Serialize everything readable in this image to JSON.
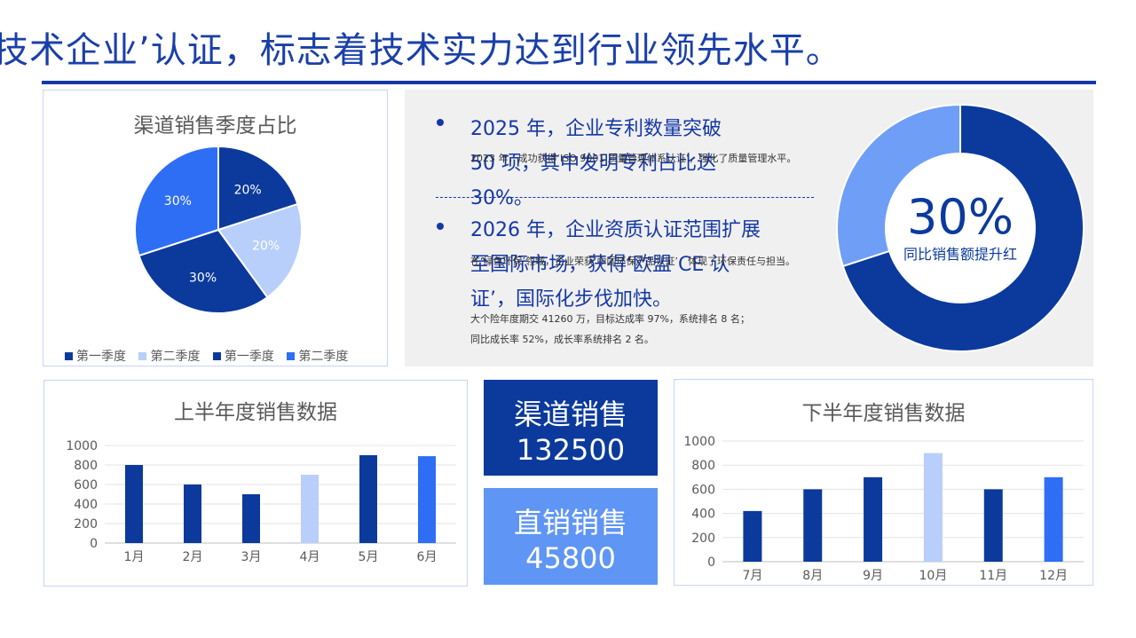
{
  "header": {
    "title": "技术企业’认证，标志着技术实力达到行业领先水平。"
  },
  "colors": {
    "primary": "#1438a6",
    "dark_blue": "#0b3a9c",
    "medium_blue": "#2e6ef5",
    "light_blue": "#b8cefb",
    "donut_light": "#6f9ef6",
    "panel_bg": "#f0f0f0"
  },
  "pie_panel": {
    "title": "渠道销售季度占比",
    "legend": [
      "第一季度",
      "第二季度",
      "第一季度",
      "第二季度"
    ]
  },
  "info": {
    "bullet1": "2025 年，企业专利数量突破 50 项，其中发明专利占比达 30%。",
    "small1": "2023 年，成功获得‘ISO 9001 质量管理体系认证’，强化了质量管理水平。",
    "bullet2": "2026 年，企业资质认证范围扩展至国际市场，获得‘欧盟 CE 认证’，国际化步伐加快。",
    "small2": "在‘绿色环保’领域，企业荣获‘中国环保产品认证’，体现了环保责任与担当。",
    "small3": "大个险年度期交 41260 万，目标达成率 97%，系统排名 8 名；",
    "small4": "同比成长率 52%，成长率系统排名 2 名。",
    "donut_value": "30%",
    "donut_label": "同比销售额提升红"
  },
  "stats": {
    "channel_label": "渠道销售",
    "channel_value": "132500",
    "direct_label": "直销销售",
    "direct_value": "45800"
  },
  "chart_data": [
    {
      "type": "pie",
      "title": "渠道销售季度占比",
      "categories": [
        "第一季度",
        "第二季度",
        "第一季度",
        "第二季度"
      ],
      "values": [
        20,
        20,
        30,
        30
      ],
      "labels": [
        "20%",
        "20%",
        "30%",
        "30%"
      ],
      "colors": [
        "#0b3a9c",
        "#b8cefb",
        "#0b3a9c",
        "#2e6ef5"
      ],
      "legend": "bottom"
    },
    {
      "type": "pie",
      "subtype": "donut",
      "values": [
        70,
        30
      ],
      "center_value": "30%",
      "center_label": "同比销售额提升红",
      "colors": [
        "#0b3a9c",
        "#6f9ef6"
      ]
    },
    {
      "type": "bar",
      "title": "上半年度销售数据",
      "categories": [
        "1月",
        "2月",
        "3月",
        "4月",
        "5月",
        "6月"
      ],
      "values": [
        800,
        600,
        500,
        700,
        900,
        890
      ],
      "colors": [
        "#0b3a9c",
        "#0b3a9c",
        "#0b3a9c",
        "#b8cefb",
        "#0b3a9c",
        "#2e6ef5"
      ],
      "ylim": [
        0,
        1000
      ],
      "yticks": [
        0,
        200,
        400,
        600,
        800,
        1000
      ],
      "grid": true
    },
    {
      "type": "bar",
      "title": "下半年度销售数据",
      "categories": [
        "7月",
        "8月",
        "9月",
        "10月",
        "11月",
        "12月"
      ],
      "values": [
        420,
        600,
        700,
        900,
        600,
        700
      ],
      "colors": [
        "#0b3a9c",
        "#0b3a9c",
        "#0b3a9c",
        "#b8cefb",
        "#0b3a9c",
        "#2e6ef5"
      ],
      "ylim": [
        0,
        1000
      ],
      "yticks": [
        0,
        200,
        400,
        600,
        800,
        1000
      ],
      "grid": true
    }
  ]
}
